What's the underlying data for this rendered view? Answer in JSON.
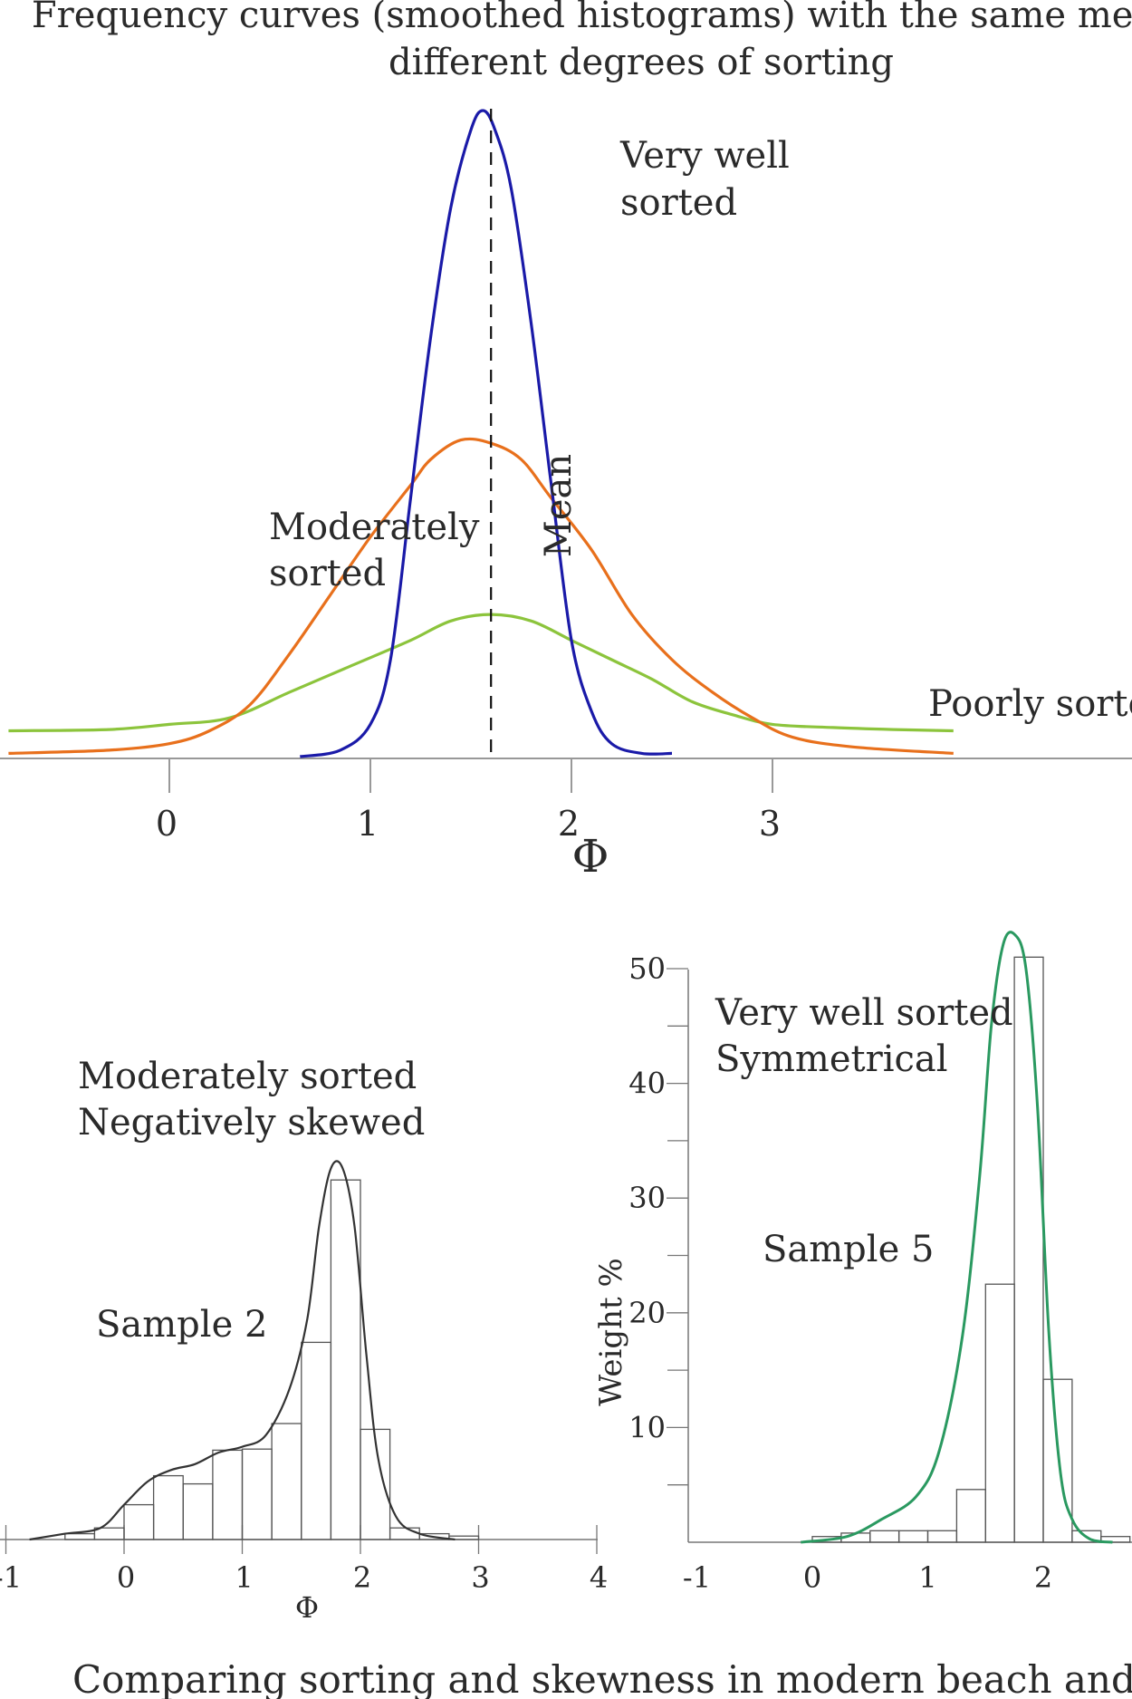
{
  "title": "Frequency curves (smoothed histograms) with the same mean but different degrees of sorting",
  "title_lines": [
    "Frequency curves (smoothed histograms) with the same mean but",
    "different degrees of sorting"
  ],
  "caption": "Comparing sorting and skewness in modern beach and dune sands",
  "chart_data": [
    {
      "id": "frequency-curves",
      "type": "line",
      "xlabel": "Φ",
      "ylabel": "",
      "xlim": [
        -0.8,
        3.9
      ],
      "ylim": [
        0,
        100
      ],
      "x_ticks": [
        0,
        1,
        2,
        3
      ],
      "mean": 1.6,
      "mean_label": "Mean",
      "grid": false,
      "series": [
        {
          "name": "Very well sorted",
          "label_lines": [
            "Very well",
            "sorted"
          ],
          "color": "#1a1aa8",
          "x": [
            0.65,
            0.85,
            1.0,
            1.1,
            1.2,
            1.3,
            1.4,
            1.5,
            1.56,
            1.62,
            1.7,
            1.8,
            1.9,
            2.0,
            2.1,
            2.2,
            2.35,
            2.5
          ],
          "y": [
            0,
            1,
            5,
            15,
            40,
            65,
            85,
            97,
            100,
            97,
            88,
            67,
            42,
            18,
            7,
            2,
            0.5,
            0.5
          ]
        },
        {
          "name": "Moderately sorted",
          "label_lines": [
            "Moderately",
            "sorted"
          ],
          "color": "#e8701c",
          "x": [
            -0.8,
            -0.3,
            0.0,
            0.2,
            0.4,
            0.6,
            0.8,
            1.0,
            1.2,
            1.3,
            1.45,
            1.6,
            1.75,
            1.9,
            2.1,
            2.3,
            2.5,
            2.7,
            2.9,
            3.1,
            3.4,
            3.9
          ],
          "y": [
            0.5,
            1,
            2,
            4,
            8,
            16,
            25,
            34,
            42,
            46,
            49,
            48.5,
            46,
            40,
            32,
            22,
            15,
            10,
            6,
            3,
            1.5,
            0.5
          ]
        },
        {
          "name": "Poorly sorted",
          "label_lines": [
            "Poorly sorted"
          ],
          "color": "#8cc43c",
          "x": [
            -0.8,
            -0.3,
            0.0,
            0.3,
            0.6,
            0.9,
            1.2,
            1.4,
            1.6,
            1.8,
            2.0,
            2.2,
            2.4,
            2.6,
            2.8,
            3.0,
            3.3,
            3.6,
            3.9
          ],
          "y": [
            4,
            4.2,
            5,
            6,
            10,
            14,
            18,
            21,
            22,
            21,
            18,
            15,
            12,
            8.5,
            6.5,
            5,
            4.5,
            4.2,
            4
          ]
        }
      ]
    },
    {
      "id": "sample-2",
      "type": "bar",
      "title": "Sample 2",
      "annotation_lines": [
        "Moderately sorted",
        "Negatively skewed"
      ],
      "xlabel": "Φ",
      "xlim": [
        -1,
        4
      ],
      "ylim": [
        0,
        50
      ],
      "x_ticks": [
        -1,
        0,
        1,
        2,
        3,
        4
      ],
      "bin_width": 0.25,
      "bins": [
        {
          "x": -0.5,
          "value": 0.5
        },
        {
          "x": -0.25,
          "value": 1
        },
        {
          "x": 0.0,
          "value": 3
        },
        {
          "x": 0.25,
          "value": 5.5
        },
        {
          "x": 0.5,
          "value": 4.8
        },
        {
          "x": 0.75,
          "value": 7.7
        },
        {
          "x": 1.0,
          "value": 7.8
        },
        {
          "x": 1.25,
          "value": 10
        },
        {
          "x": 1.5,
          "value": 17
        },
        {
          "x": 1.75,
          "value": 31
        },
        {
          "x": 2.0,
          "value": 9.5
        },
        {
          "x": 2.25,
          "value": 1
        },
        {
          "x": 2.5,
          "value": 0.5
        },
        {
          "x": 2.75,
          "value": 0.3
        }
      ],
      "curve": {
        "color": "#333333",
        "x": [
          -0.8,
          -0.5,
          -0.2,
          0.0,
          0.2,
          0.4,
          0.6,
          0.8,
          1.0,
          1.2,
          1.4,
          1.55,
          1.65,
          1.75,
          1.85,
          1.95,
          2.05,
          2.15,
          2.3,
          2.5,
          2.8
        ],
        "y": [
          0,
          0.5,
          1,
          3,
          5,
          6,
          6.5,
          7.5,
          8,
          9,
          13,
          19,
          27,
          32,
          32,
          27,
          16,
          7,
          2,
          0.5,
          0
        ]
      }
    },
    {
      "id": "sample-5",
      "type": "bar",
      "title": "Sample 5",
      "annotation_lines": [
        "Very well sorted",
        "Symmetrical"
      ],
      "xlabel": "",
      "ylabel": "Weight %",
      "xlim": [
        -1,
        2.7
      ],
      "ylim": [
        0,
        50
      ],
      "x_ticks": [
        -1,
        0,
        1,
        2
      ],
      "y_ticks": [
        10,
        20,
        30,
        40,
        50
      ],
      "bin_width": 0.25,
      "bins": [
        {
          "x": 0.0,
          "value": 0.5
        },
        {
          "x": 0.25,
          "value": 0.8
        },
        {
          "x": 0.5,
          "value": 1
        },
        {
          "x": 0.75,
          "value": 1
        },
        {
          "x": 1.0,
          "value": 1
        },
        {
          "x": 1.25,
          "value": 4.6
        },
        {
          "x": 1.5,
          "value": 22.5
        },
        {
          "x": 1.75,
          "value": 51
        },
        {
          "x": 2.0,
          "value": 14.2
        },
        {
          "x": 2.25,
          "value": 1
        },
        {
          "x": 2.5,
          "value": 0.5
        }
      ],
      "curve": {
        "color": "#2a9960",
        "x": [
          -0.1,
          0.3,
          0.6,
          0.9,
          1.1,
          1.3,
          1.45,
          1.55,
          1.65,
          1.75,
          1.85,
          1.95,
          2.05,
          2.15,
          2.25,
          2.4,
          2.6
        ],
        "y": [
          0,
          0.5,
          2,
          4,
          8,
          18,
          32,
          45,
          52,
          53,
          50,
          38,
          18,
          6,
          2,
          0.3,
          0
        ]
      }
    }
  ]
}
